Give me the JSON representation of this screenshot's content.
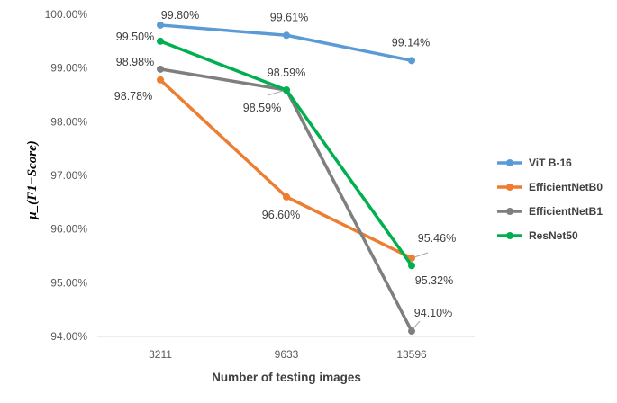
{
  "chart_data": {
    "type": "line",
    "xlabel": "Number of testing images",
    "ylabel": "μ_(F1−Score)",
    "categories": [
      "3211",
      "9633",
      "13596"
    ],
    "ylim": [
      94.0,
      100.0
    ],
    "yticks": [
      "94.00%",
      "95.00%",
      "96.00%",
      "97.00%",
      "98.00%",
      "99.00%",
      "100.00%"
    ],
    "grid": false,
    "legend": "right",
    "series": [
      {
        "name": "ViT B-16",
        "color": "#5b9bd5",
        "values": [
          99.8,
          99.61,
          99.14
        ],
        "labels": [
          "99.80%",
          "99.61%",
          "99.14%"
        ]
      },
      {
        "name": "EfficientNetB0",
        "color": "#ed7d31",
        "values": [
          98.78,
          96.6,
          95.46
        ],
        "labels": [
          "98.78%",
          "96.60%",
          "95.46%"
        ]
      },
      {
        "name": "EfficientNetB1",
        "color": "#7f7f7f",
        "values": [
          98.98,
          98.59,
          94.1
        ],
        "labels": [
          "98.98%",
          "98.59%",
          "94.10%"
        ]
      },
      {
        "name": "ResNet50",
        "color": "#00b050",
        "values": [
          99.5,
          98.59,
          95.32
        ],
        "labels": [
          "99.50%",
          "98.59%",
          "95.32%"
        ]
      }
    ]
  }
}
